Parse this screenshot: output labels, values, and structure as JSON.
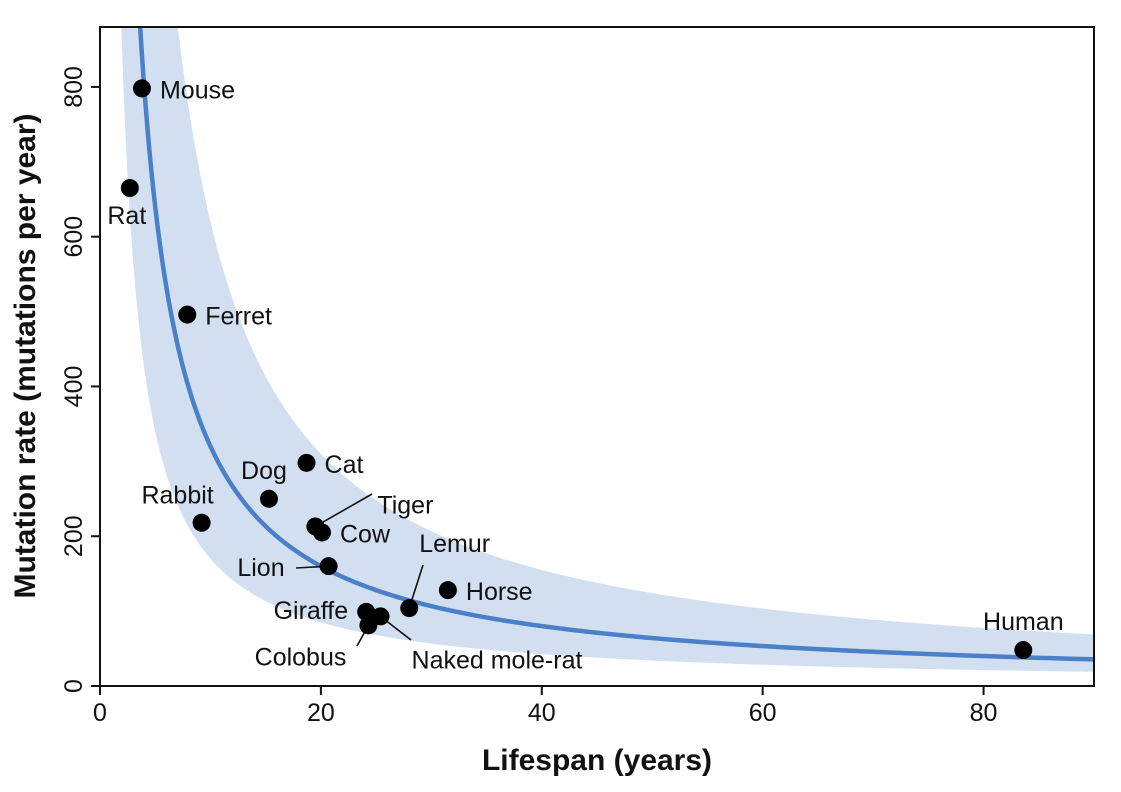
{
  "chart_data": {
    "type": "scatter",
    "title": "",
    "xlabel": "Lifespan (years)",
    "ylabel": "Mutation rate (mutations per year)",
    "xlim": [
      0,
      90
    ],
    "ylim": [
      0,
      880
    ],
    "xticks": [
      0,
      20,
      40,
      60,
      80
    ],
    "yticks": [
      0,
      200,
      400,
      600,
      800
    ],
    "grid": false,
    "legend": "none",
    "points": [
      {
        "label": "Mouse",
        "x": 3.8,
        "y": 798
      },
      {
        "label": "Rat",
        "x": 2.7,
        "y": 665
      },
      {
        "label": "Ferret",
        "x": 7.9,
        "y": 496
      },
      {
        "label": "Rabbit",
        "x": 9.2,
        "y": 218
      },
      {
        "label": "Dog",
        "x": 15.3,
        "y": 250
      },
      {
        "label": "Cat",
        "x": 18.7,
        "y": 298
      },
      {
        "label": "Tiger",
        "x": 19.5,
        "y": 213
      },
      {
        "label": "Cow",
        "x": 20.1,
        "y": 205
      },
      {
        "label": "Lion",
        "x": 20.7,
        "y": 160
      },
      {
        "label": "Lemur",
        "x": 28.0,
        "y": 104
      },
      {
        "label": "Horse",
        "x": 31.5,
        "y": 128
      },
      {
        "label": "Giraffe",
        "x": 24.1,
        "y": 99
      },
      {
        "label": "Colobus",
        "x": 24.3,
        "y": 81
      },
      {
        "label": "Naked mole-rat",
        "x": 25.4,
        "y": 93
      },
      {
        "label": "Human",
        "x": 83.6,
        "y": 48
      }
    ],
    "fit_curve": {
      "form": "y = k / x",
      "k": 3200
    },
    "confidence_band": {
      "lower_k": 1700,
      "upper_k": 6200
    },
    "colors": {
      "curve": "#4a80c8",
      "band": "#d2dff0",
      "points": "#000000"
    }
  }
}
